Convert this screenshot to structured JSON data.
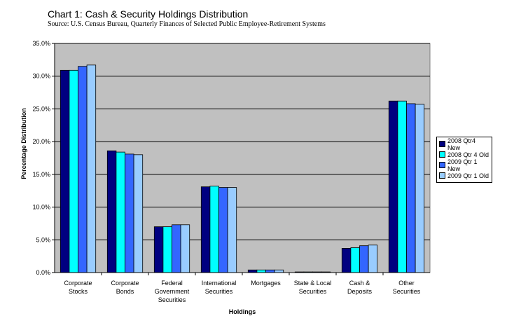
{
  "chart_data": {
    "type": "bar",
    "title": "Chart 1:  Cash & Security Holdings Distribution",
    "subtitle": "Source: U.S. Census Bureau, Quarterly Finances of Selected Public Employee-Retirement Systems",
    "xlabel": "Holdings",
    "ylabel": "Percentage Distribution",
    "ylim": [
      0,
      35
    ],
    "yticks": [
      {
        "value": 0,
        "label": "0.0%"
      },
      {
        "value": 5,
        "label": "5.0%"
      },
      {
        "value": 10,
        "label": "10.0%"
      },
      {
        "value": 15,
        "label": "15.0%"
      },
      {
        "value": 20,
        "label": "20.0%"
      },
      {
        "value": 25,
        "label": "25.0%"
      },
      {
        "value": 30,
        "label": "30.0%"
      },
      {
        "value": 35,
        "label": "35.0%"
      }
    ],
    "grid": true,
    "legend_position": "right",
    "plot_background": "#c0c0c0",
    "categories": [
      [
        "Corporate",
        "Stocks"
      ],
      [
        "Corporate",
        "Bonds"
      ],
      [
        "Federal",
        "Government",
        "Securities"
      ],
      [
        "International",
        "Securities"
      ],
      [
        "Mortgages"
      ],
      [
        "State & Local",
        "Securities"
      ],
      [
        "Cash &",
        "Deposits"
      ],
      [
        "Other",
        "Securities"
      ]
    ],
    "series": [
      {
        "name": "2008 Qtr4 New",
        "color": "#000080",
        "values": [
          30.9,
          18.6,
          7.0,
          13.1,
          0.4,
          0.1,
          3.7,
          26.2
        ]
      },
      {
        "name": "2008 Qtr 4 Old",
        "color": "#00ffff",
        "values": [
          30.9,
          18.4,
          7.0,
          13.2,
          0.4,
          0.1,
          3.8,
          26.2
        ]
      },
      {
        "name": "2009 Qtr 1 New",
        "color": "#3366ff",
        "values": [
          31.5,
          18.1,
          7.3,
          13.0,
          0.4,
          0.1,
          4.1,
          25.8
        ]
      },
      {
        "name": "2009 Qtr 1 Old",
        "color": "#99ccff",
        "values": [
          31.7,
          18.0,
          7.3,
          13.0,
          0.4,
          0.1,
          4.2,
          25.7
        ]
      }
    ]
  }
}
